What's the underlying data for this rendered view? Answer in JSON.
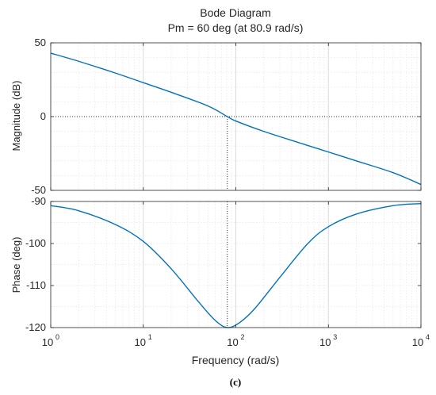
{
  "chart_data": {
    "type": "line",
    "title": "Bode Diagram",
    "subtitle": "Pm = 60 deg (at 80.9 rad/s)",
    "xlabel": "Frequency  (rad/s)",
    "xscale": "log",
    "xlim": [
      1,
      10000
    ],
    "grid": true,
    "x_ticks": [
      {
        "value": 1,
        "base": "10",
        "exp": "0"
      },
      {
        "value": 10,
        "base": "10",
        "exp": "1"
      },
      {
        "value": 100,
        "base": "10",
        "exp": "2"
      },
      {
        "value": 1000,
        "base": "10",
        "exp": "3"
      },
      {
        "value": 10000,
        "base": "10",
        "exp": "4"
      }
    ],
    "crossover_frequency": 80.9,
    "phase_margin_deg": 60,
    "subplots": [
      {
        "ylabel": "Magnitude (dB)",
        "ylim": [
          -50,
          50
        ],
        "yticks": [
          50,
          0,
          -50
        ],
        "ytick_labels": [
          "50",
          "0",
          "-50"
        ],
        "reference_line": 0,
        "series": [
          {
            "color": "#0072BD",
            "x": [
              1,
              2,
              5,
              10,
              20,
              50,
              80.9,
              100,
              200,
              500,
              1000,
              2000,
              5000,
              10000
            ],
            "values": [
              43,
              37.5,
              29.5,
              23,
              16.5,
              7.2,
              0,
              -3,
              -10,
              -18,
              -24,
              -30,
              -38,
              -46
            ]
          }
        ]
      },
      {
        "ylabel": "Phase (deg)",
        "ylim": [
          -120,
          -90
        ],
        "yticks": [
          -90,
          -100,
          -110,
          -120
        ],
        "ytick_labels": [
          "-90",
          "-100",
          "-110",
          "-120"
        ],
        "reference_line": -120,
        "series": [
          {
            "color": "#0072BD",
            "x": [
              1,
              2,
              5,
              10,
              20,
              40,
              60,
              80.9,
              110,
              160,
              300,
              600,
              1000,
              2000,
              5000,
              10000
            ],
            "values": [
              -91,
              -92.2,
              -95.5,
              -99.5,
              -106,
              -114,
              -118.3,
              -120,
              -118.8,
              -115.5,
              -108,
              -100,
              -96,
              -93,
              -91,
              -90.5
            ]
          }
        ]
      }
    ]
  },
  "caption": "(c)"
}
